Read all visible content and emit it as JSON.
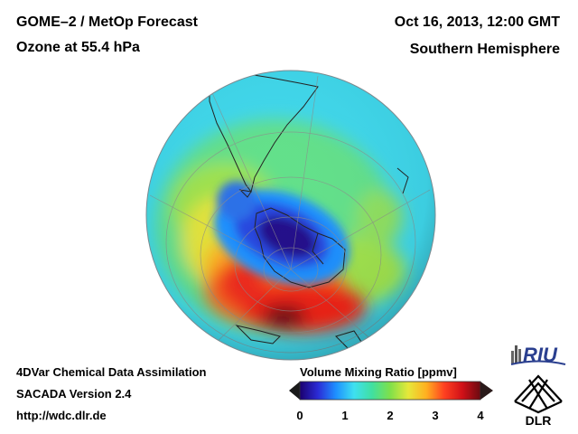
{
  "header": {
    "title_line1": "GOME–2 / MetOp Forecast",
    "title_line2": "Ozone at 55.4 hPa",
    "date": "Oct 16, 2013, 12:00 GMT",
    "region": "Southern Hemisphere"
  },
  "footer": {
    "line1": "4DVar Chemical Data Assimilation",
    "line2": "SACADA Version 2.4",
    "line3": "http://wdc.dlr.de"
  },
  "colorbar": {
    "title": "Volume Mixing Ratio [ppmv]",
    "ticks": [
      "0",
      "1",
      "2",
      "3",
      "4"
    ],
    "min": 0,
    "max": 4,
    "colors": [
      "#1a006e",
      "#2b2bd6",
      "#1e90ff",
      "#3ee0f0",
      "#40e0a0",
      "#7fe04a",
      "#e6e83a",
      "#ffb020",
      "#ff4020",
      "#d01018",
      "#6a0a10"
    ]
  },
  "logos": {
    "riu": "RIU",
    "dlr": "DLR"
  }
}
